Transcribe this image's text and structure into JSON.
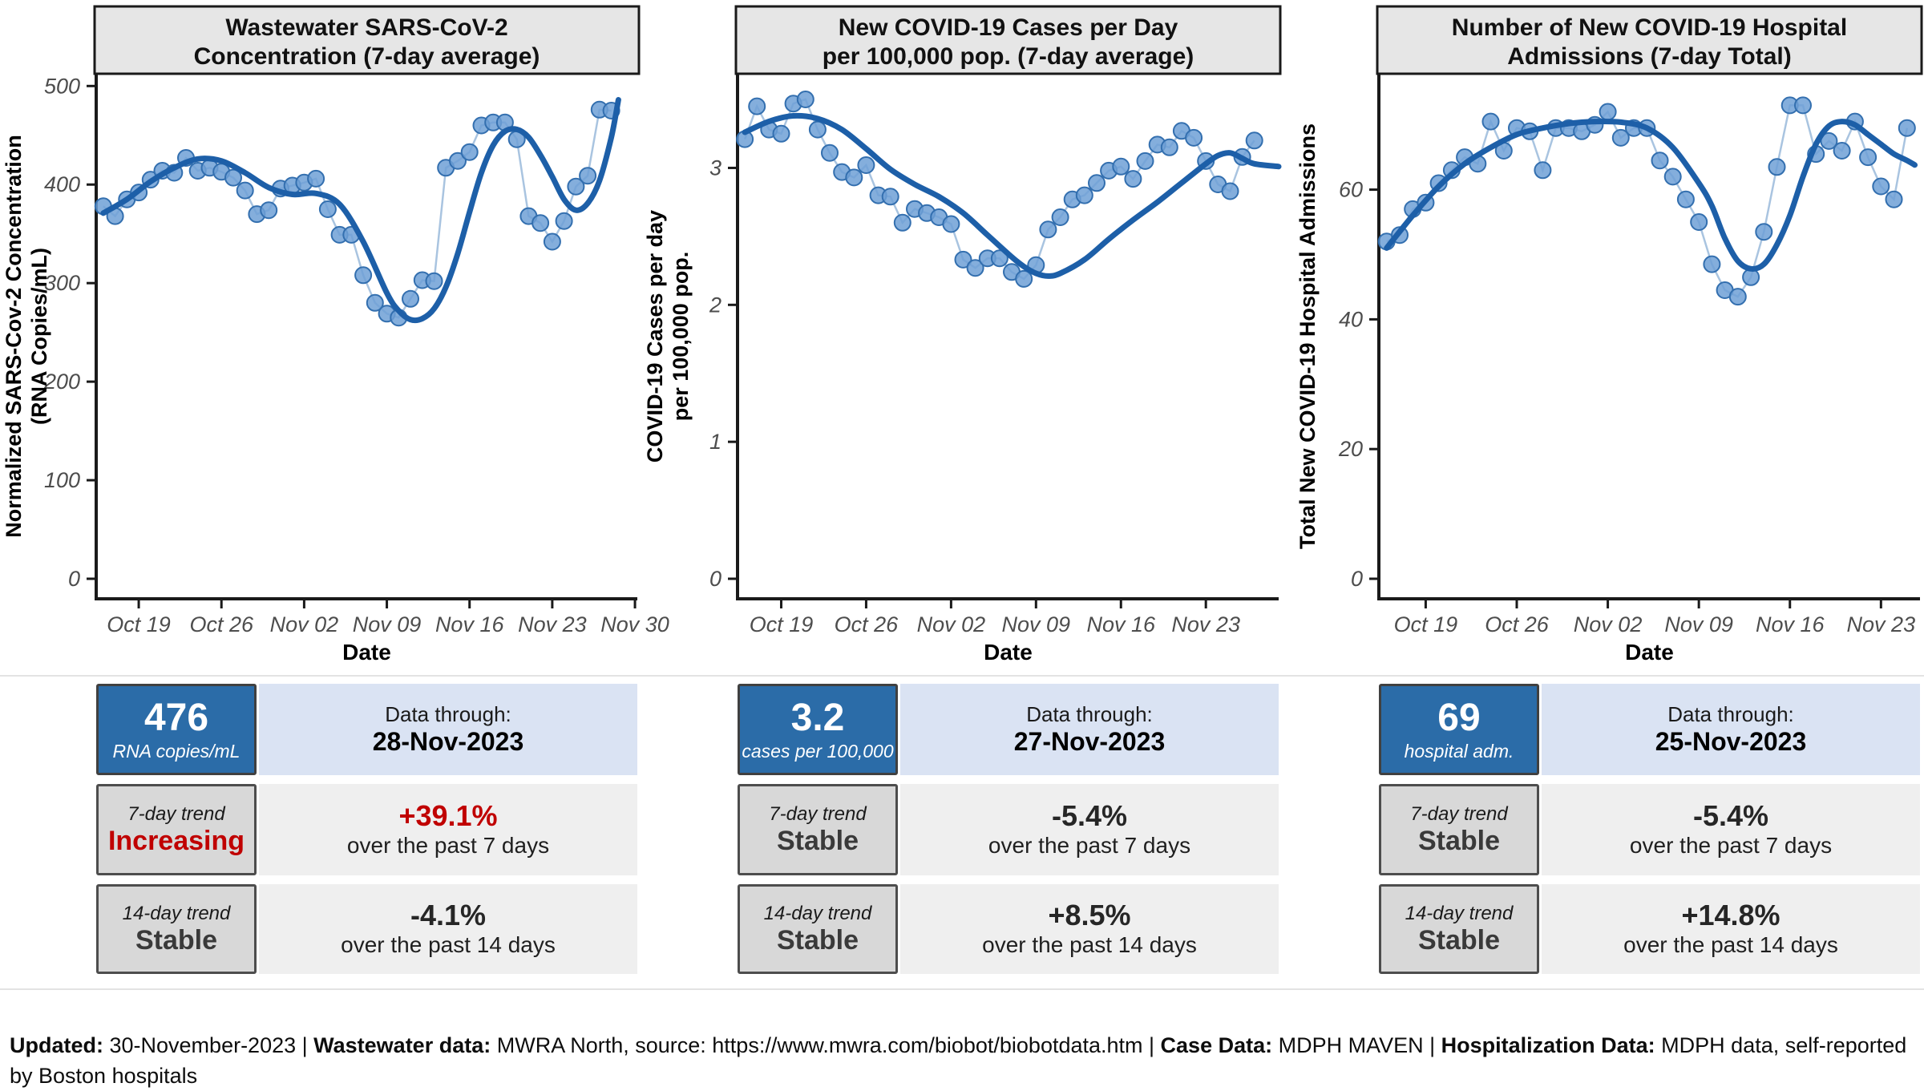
{
  "colors": {
    "card_blue": "#2B6CA8",
    "light_blue_band": "#DAE3F3",
    "gray_band": "#EFEFEF",
    "gray_box": "#D8D8D8",
    "red": "#C00000",
    "dark": "#3a3a3a",
    "near_black": "#262626",
    "point_fill": "#6FA0D6",
    "point_stroke": "#336FAF",
    "thin_line": "#A9C4E0",
    "trend_line": "#1D5FA8",
    "strip_fill": "#E6E6E6",
    "strip_border": "#1a1a1a",
    "axis": "#1a1a1a",
    "tick_text": "#4d4d4d"
  },
  "chart_data": [
    {
      "type": "line",
      "title_lines": [
        "Wastewater SARS-CoV-2",
        "Concentration (7-day average)"
      ],
      "ylabel_lines": [
        "Normalized SARS-Cov-2 Concentration",
        "(RNA Copies/mL)"
      ],
      "xlabel": "Date",
      "y_ticks": [
        0,
        100,
        200,
        300,
        400,
        500
      ],
      "y_top": 510,
      "x_domain": [
        -0.6,
        45.2
      ],
      "x_ticks": [
        {
          "day": 3,
          "label": "Oct 19"
        },
        {
          "day": 10,
          "label": "Oct 26"
        },
        {
          "day": 17,
          "label": "Nov 02"
        },
        {
          "day": 24,
          "label": "Nov 09"
        },
        {
          "day": 31,
          "label": "Nov 16"
        },
        {
          "day": 38,
          "label": "Nov 23"
        },
        {
          "day": 45,
          "label": "Nov 30"
        }
      ],
      "start_day": 0,
      "start_date": "16-Oct-2023",
      "end_date": "28-Nov-2023",
      "values": [
        378,
        368,
        385,
        392,
        405,
        414,
        412,
        427,
        414,
        417,
        413,
        407,
        394,
        370,
        374,
        396,
        399,
        402,
        406,
        375,
        349,
        349,
        308,
        280,
        269,
        265,
        284,
        303,
        302,
        417,
        424,
        433,
        460,
        463,
        463,
        446,
        368,
        361,
        342,
        363,
        398,
        409,
        476,
        475
      ],
      "trend": [
        [
          0,
          371
        ],
        [
          2,
          385
        ],
        [
          4,
          403
        ],
        [
          6,
          417
        ],
        [
          8,
          426
        ],
        [
          10,
          424
        ],
        [
          12,
          412
        ],
        [
          14,
          397
        ],
        [
          16,
          390
        ],
        [
          18,
          391
        ],
        [
          20,
          380
        ],
        [
          22,
          342
        ],
        [
          24,
          290
        ],
        [
          25,
          272
        ],
        [
          26,
          263
        ],
        [
          27,
          264
        ],
        [
          28,
          274
        ],
        [
          29,
          296
        ],
        [
          30,
          330
        ],
        [
          31,
          372
        ],
        [
          32,
          412
        ],
        [
          33,
          440
        ],
        [
          34,
          454
        ],
        [
          35,
          456
        ],
        [
          36,
          448
        ],
        [
          37,
          430
        ],
        [
          38,
          408
        ],
        [
          39,
          385
        ],
        [
          40,
          374
        ],
        [
          41,
          381
        ],
        [
          42,
          404
        ],
        [
          43,
          448
        ],
        [
          43.6,
          486
        ]
      ]
    },
    {
      "type": "line",
      "title_lines": [
        "New COVID-19 Cases per Day",
        "per 100,000 pop. (7-day average)"
      ],
      "ylabel_lines": [
        "COVID-19 Cases per day",
        "per 100,000 pop."
      ],
      "xlabel": "Date",
      "y_ticks": [
        0,
        1,
        2,
        3
      ],
      "y_top": 3.67,
      "x_domain": [
        -0.6,
        44.0
      ],
      "x_ticks": [
        {
          "day": 3,
          "label": "Oct 19"
        },
        {
          "day": 10,
          "label": "Oct 26"
        },
        {
          "day": 17,
          "label": "Nov 02"
        },
        {
          "day": 24,
          "label": "Nov 09"
        },
        {
          "day": 31,
          "label": "Nov 16"
        },
        {
          "day": 38,
          "label": "Nov 23"
        }
      ],
      "start_day": 0,
      "start_date": "16-Oct-2023",
      "end_date": "27-Nov-2023",
      "values": [
        3.21,
        3.45,
        3.28,
        3.25,
        3.47,
        3.5,
        3.28,
        3.11,
        2.97,
        2.93,
        3.02,
        2.8,
        2.79,
        2.6,
        2.7,
        2.67,
        2.64,
        2.59,
        2.33,
        2.27,
        2.34,
        2.34,
        2.24,
        2.19,
        2.29,
        2.55,
        2.64,
        2.77,
        2.8,
        2.89,
        2.98,
        3.01,
        2.92,
        3.05,
        3.17,
        3.15,
        3.27,
        3.22,
        3.05,
        2.88,
        2.83,
        3.08,
        3.2
      ],
      "trend": [
        [
          0,
          3.26
        ],
        [
          2,
          3.34
        ],
        [
          4,
          3.38
        ],
        [
          6,
          3.36
        ],
        [
          8,
          3.28
        ],
        [
          10,
          3.14
        ],
        [
          12,
          2.99
        ],
        [
          14,
          2.88
        ],
        [
          16,
          2.79
        ],
        [
          18,
          2.67
        ],
        [
          20,
          2.51
        ],
        [
          22,
          2.35
        ],
        [
          23,
          2.28
        ],
        [
          24,
          2.23
        ],
        [
          25,
          2.21
        ],
        [
          26,
          2.23
        ],
        [
          28,
          2.33
        ],
        [
          30,
          2.48
        ],
        [
          32,
          2.62
        ],
        [
          34,
          2.75
        ],
        [
          36,
          2.89
        ],
        [
          38,
          3.03
        ],
        [
          39,
          3.09
        ],
        [
          40,
          3.11
        ],
        [
          41,
          3.07
        ],
        [
          42,
          3.03
        ],
        [
          44,
          3.01
        ]
      ]
    },
    {
      "type": "line",
      "title_lines": [
        "Number of New COVID-19 Hospital",
        "Admissions (7-day Total)"
      ],
      "ylabel_lines": [
        "Total New COVID-19 Hospital Admissions"
      ],
      "xlabel": "Date",
      "y_ticks": [
        0,
        20,
        40,
        60
      ],
      "y_top": 77.5,
      "x_domain": [
        -0.6,
        41.0
      ],
      "x_ticks": [
        {
          "day": 3,
          "label": "Oct 19"
        },
        {
          "day": 10,
          "label": "Oct 26"
        },
        {
          "day": 17,
          "label": "Nov 02"
        },
        {
          "day": 24,
          "label": "Nov 09"
        },
        {
          "day": 31,
          "label": "Nov 16"
        },
        {
          "day": 38,
          "label": "Nov 23"
        }
      ],
      "start_day": 0,
      "start_date": "16-Oct-2023",
      "end_date": "25-Nov-2023",
      "values": [
        52,
        53,
        57,
        58,
        61,
        63,
        65,
        64,
        70.5,
        66,
        69.5,
        69,
        63,
        69.5,
        69.5,
        69,
        70,
        72,
        68,
        69.5,
        69.5,
        64.5,
        62,
        58.5,
        55,
        48.5,
        44.5,
        43.5,
        46.5,
        53.5,
        63.5,
        73,
        73,
        65.5,
        67.5,
        66,
        70.5,
        65,
        60.5,
        58.5,
        69.5
      ],
      "trend": [
        [
          0,
          51
        ],
        [
          2,
          56
        ],
        [
          4,
          60.5
        ],
        [
          6,
          64
        ],
        [
          8,
          66.5
        ],
        [
          10,
          68.5
        ],
        [
          12,
          69.5
        ],
        [
          14,
          70.2
        ],
        [
          16,
          70.5
        ],
        [
          18,
          70.4
        ],
        [
          20,
          69.5
        ],
        [
          22,
          66.5
        ],
        [
          24,
          61
        ],
        [
          25,
          57.5
        ],
        [
          26,
          52.5
        ],
        [
          27,
          49
        ],
        [
          28,
          47.8
        ],
        [
          29,
          48.5
        ],
        [
          30,
          51.5
        ],
        [
          31,
          56
        ],
        [
          32,
          62
        ],
        [
          33,
          67
        ],
        [
          34,
          69.8
        ],
        [
          35,
          70.5
        ],
        [
          36,
          70
        ],
        [
          37,
          68.5
        ],
        [
          38,
          67
        ],
        [
          39,
          65.5
        ],
        [
          40,
          64.5
        ],
        [
          40.6,
          63.8
        ]
      ]
    }
  ],
  "cards": [
    {
      "metric_value": "476",
      "metric_unit": "RNA copies/mL",
      "data_through_label": "Data through:",
      "data_through_date": "28-Nov-2023",
      "trend7": {
        "label": "7-day trend",
        "status": "Increasing",
        "status_color": "#C00000",
        "pct": "+39.1%",
        "pct_color": "#C00000",
        "caption": "over the past 7 days"
      },
      "trend14": {
        "label": "14-day trend",
        "status": "Stable",
        "status_color": "#3a3a3a",
        "pct": "-4.1%",
        "pct_color": "#262626",
        "caption": "over the past 14 days"
      }
    },
    {
      "metric_value": "3.2",
      "metric_unit": "cases per 100,000",
      "data_through_label": "Data through:",
      "data_through_date": "27-Nov-2023",
      "trend7": {
        "label": "7-day trend",
        "status": "Stable",
        "status_color": "#3a3a3a",
        "pct": "-5.4%",
        "pct_color": "#262626",
        "caption": "over the past 7 days"
      },
      "trend14": {
        "label": "14-day trend",
        "status": "Stable",
        "status_color": "#3a3a3a",
        "pct": "+8.5%",
        "pct_color": "#262626",
        "caption": "over the past 14 days"
      }
    },
    {
      "metric_value": "69",
      "metric_unit": "hospital adm.",
      "data_through_label": "Data through:",
      "data_through_date": "25-Nov-2023",
      "trend7": {
        "label": "7-day trend",
        "status": "Stable",
        "status_color": "#3a3a3a",
        "pct": "-5.4%",
        "pct_color": "#262626",
        "caption": "over the past 7 days"
      },
      "trend14": {
        "label": "14-day trend",
        "status": "Stable",
        "status_color": "#3a3a3a",
        "pct": "+14.8%",
        "pct_color": "#262626",
        "caption": "over the past 14 days"
      }
    }
  ],
  "footer": {
    "segments": [
      {
        "b": "Updated:",
        "t": " 30-November-2023 | "
      },
      {
        "b": "Wastewater data:",
        "t": " MWRA North, source: https://www.mwra.com/biobot/biobotdata.htm | "
      },
      {
        "b": "Case Data:",
        "t": " MDPH MAVEN | "
      },
      {
        "b": "Hospitalization Data:",
        "t": " MDPH data, self-reported by Boston hospitals"
      }
    ]
  }
}
